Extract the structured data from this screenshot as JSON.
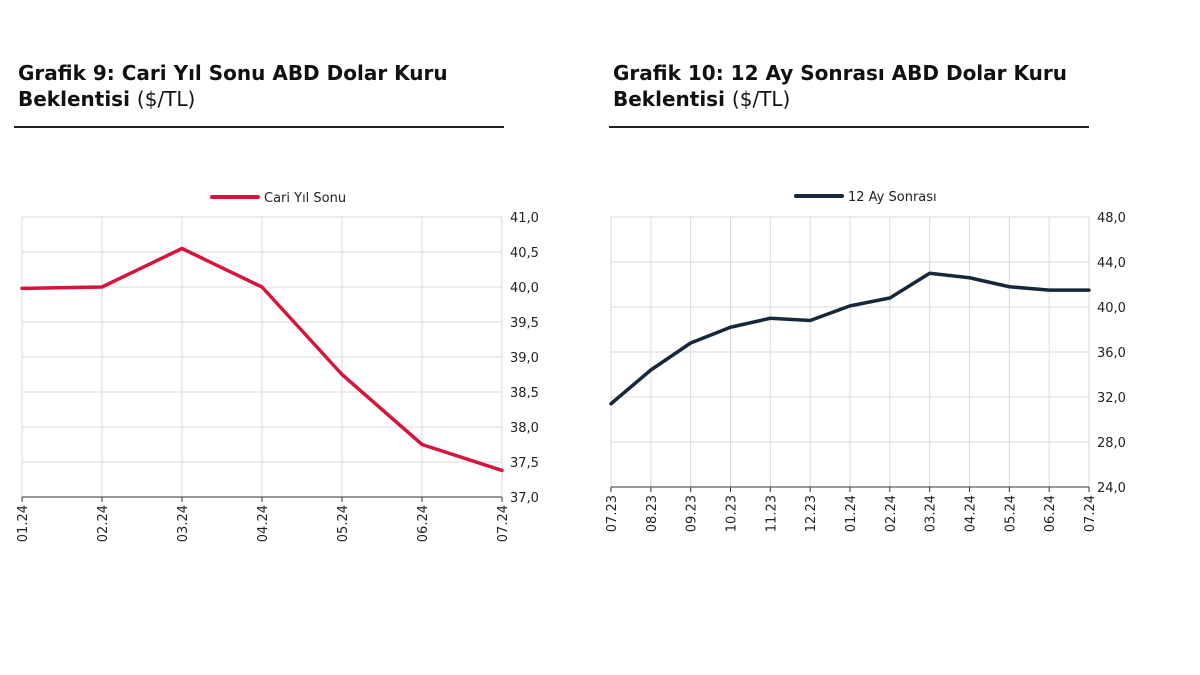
{
  "colors": {
    "left_line": "#d4163c",
    "right_line": "#17283b",
    "grid": "#d9d9d9",
    "axis": "#333333"
  },
  "chart_data": [
    {
      "type": "line",
      "title_bold": "Grafik 9: Cari Yıl Sonu ABD Dolar Kuru Beklentisi",
      "title_unit": "($/TL)",
      "legend": "Cari Yıl Sonu",
      "legend_position": "top",
      "x": [
        "01.24",
        "02.24",
        "03.24",
        "04.24",
        "05.24",
        "06.24",
        "07.24"
      ],
      "series": [
        {
          "name": "Cari Yıl Sonu",
          "values": [
            39.98,
            40.0,
            40.55,
            40.0,
            38.75,
            37.75,
            37.38
          ]
        }
      ],
      "ylim": [
        37.0,
        41.0
      ],
      "yticks": [
        "37,0",
        "37,5",
        "38,0",
        "38,5",
        "39,0",
        "39,5",
        "40,0",
        "40,5",
        "41,0"
      ],
      "yaxis_side": "right",
      "grid": true
    },
    {
      "type": "line",
      "title_bold": "Grafik 10: 12 Ay Sonrası ABD Dolar Kuru Beklentisi",
      "title_unit": "($/TL)",
      "legend": "12 Ay Sonrası",
      "legend_position": "top",
      "x": [
        "07.23",
        "08.23",
        "09.23",
        "10.23",
        "11.23",
        "12.23",
        "01.24",
        "02.24",
        "03.24",
        "04.24",
        "05.24",
        "06.24",
        "07.24"
      ],
      "series": [
        {
          "name": "12 Ay Sonrası",
          "values": [
            31.4,
            34.4,
            36.8,
            38.2,
            39.0,
            38.8,
            40.1,
            40.8,
            43.0,
            42.6,
            41.8,
            41.5,
            41.5
          ]
        }
      ],
      "ylim": [
        24.0,
        48.0
      ],
      "yticks": [
        "24,0",
        "28,0",
        "32,0",
        "36,0",
        "40,0",
        "44,0",
        "48,0"
      ],
      "yaxis_side": "right",
      "grid": true
    }
  ]
}
